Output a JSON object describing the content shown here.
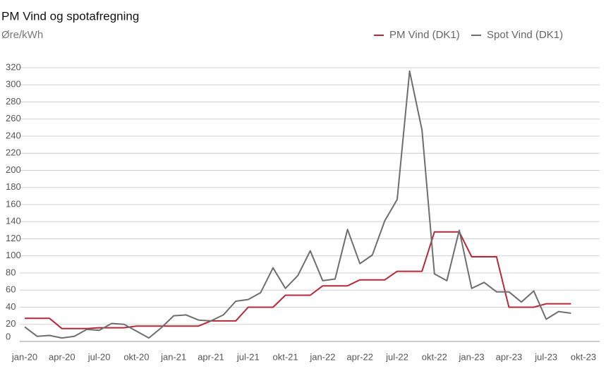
{
  "chart_data": {
    "type": "line",
    "title": "PM Vind og spotafregning",
    "y_label": "Øre/kWh",
    "categories": [
      "jan-20",
      null,
      null,
      "apr-20",
      null,
      null,
      "jul-20",
      null,
      null,
      "okt-20",
      null,
      null,
      "jan-21",
      null,
      null,
      "apr-21",
      null,
      null,
      "jul-21",
      null,
      null,
      "okt-21",
      null,
      null,
      "jan-22",
      null,
      null,
      "apr-22",
      null,
      null,
      "jul-22",
      null,
      null,
      "okt-22",
      null,
      null,
      "jan-23",
      null,
      null,
      "apr-23",
      null,
      null,
      "jul-23",
      null,
      null,
      "okt-23"
    ],
    "series": [
      {
        "name": "PM Vind (DK1)",
        "color": "#b5293a",
        "values": [
          27,
          27,
          27,
          15,
          15,
          15,
          16,
          16,
          16,
          18,
          18,
          18,
          18,
          18,
          18,
          24,
          24,
          24,
          40,
          40,
          40,
          54,
          54,
          54,
          65,
          65,
          65,
          72,
          72,
          72,
          82,
          82,
          82,
          128,
          128,
          128,
          99,
          99,
          99,
          40,
          40,
          40,
          44,
          44,
          44,
          null
        ]
      },
      {
        "name": "Spot Vind (DK1)",
        "color": "#6e6e6e",
        "values": [
          17,
          6,
          7,
          4,
          6,
          14,
          13,
          21,
          20,
          12,
          4,
          16,
          30,
          31,
          25,
          24,
          31,
          47,
          49,
          57,
          86,
          62,
          77,
          106,
          71,
          73,
          131,
          91,
          101,
          141,
          166,
          316,
          247,
          79,
          71,
          130,
          62,
          69,
          58,
          58,
          46,
          59,
          26,
          35,
          33,
          null
        ]
      }
    ],
    "ylim": [
      0,
      320
    ],
    "yticks": [
      0,
      20,
      40,
      60,
      80,
      100,
      120,
      140,
      160,
      180,
      200,
      220,
      240,
      260,
      280,
      300,
      320
    ],
    "grid": true,
    "legend": "top-right"
  }
}
